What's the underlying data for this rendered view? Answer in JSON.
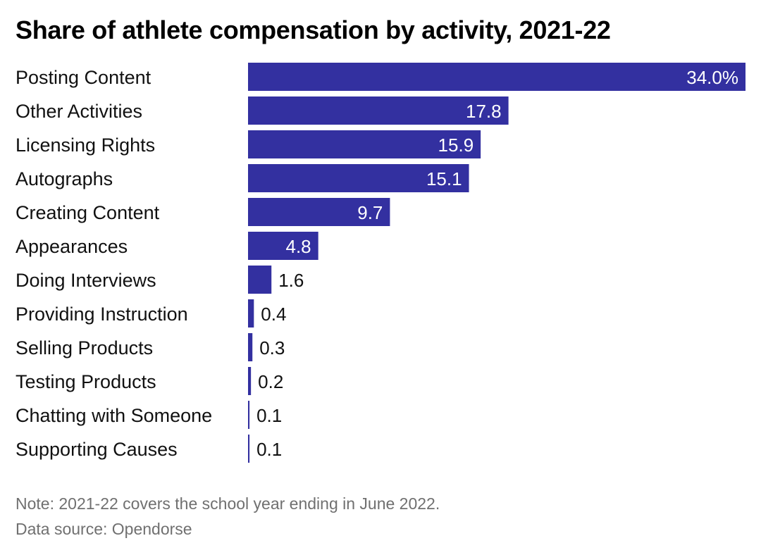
{
  "chart_data": {
    "type": "bar",
    "orientation": "horizontal",
    "title": "Share of athlete compensation by activity, 2021-22",
    "xlabel": "",
    "ylabel": "",
    "value_suffix_first": "%",
    "categories": [
      "Posting Content",
      "Other Activities",
      "Licensing Rights",
      "Autographs",
      "Creating Content",
      "Appearances",
      "Doing Interviews",
      "Providing Instruction",
      "Selling Products",
      "Testing Products",
      "Chatting with Someone",
      "Supporting Causes"
    ],
    "values": [
      34.0,
      17.8,
      15.9,
      15.1,
      9.7,
      4.8,
      1.6,
      0.4,
      0.3,
      0.2,
      0.1,
      0.1
    ],
    "value_labels": [
      "34.0%",
      "17.8",
      "15.9",
      "15.1",
      "9.7",
      "4.8",
      "1.6",
      "0.4",
      "0.3",
      "0.2",
      "0.1",
      "0.1"
    ],
    "xlim": [
      0,
      34.0
    ],
    "grid": false,
    "legend": "none",
    "bar_color": "#3330a0"
  },
  "footer": {
    "note": "Note: 2021-22 covers the school year ending in June 2022.",
    "source": "Data source: Opendorse"
  }
}
